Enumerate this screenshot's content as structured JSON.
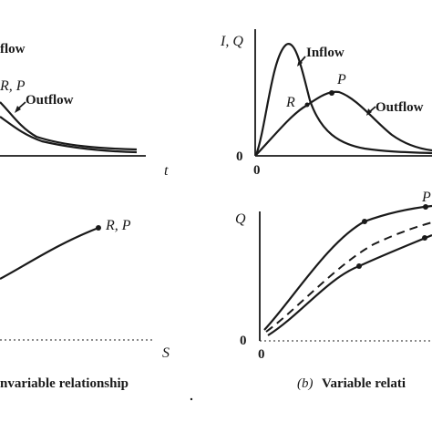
{
  "panel_a_top": {
    "label_inflow": "flow",
    "label_rp": "R, P",
    "label_outflow": "Outflow",
    "x_axis_label": "t"
  },
  "panel_b_top": {
    "y_axis_label": "I, Q",
    "label_inflow": "Inflow",
    "label_p": "P",
    "label_r": "R",
    "label_outflow": "Outflow",
    "origin_y": "0",
    "origin_x": "0"
  },
  "panel_a_bottom": {
    "label_rp": "R, P",
    "x_axis_label": "S"
  },
  "panel_b_bottom": {
    "y_axis_label": "Q",
    "label_p": "P",
    "origin_y": "0",
    "origin_x": "0"
  },
  "captions": {
    "a": "nvariable relationship",
    "b_prefix": "(b)",
    "b_text": "Variable relati"
  }
}
